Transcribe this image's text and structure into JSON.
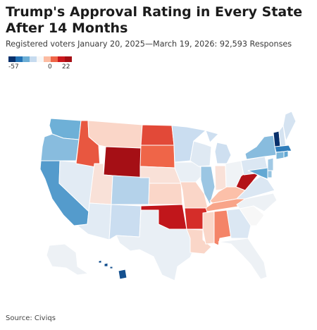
{
  "header": {
    "title": "Trump's Approval Rating in Every State After 14 Months",
    "subtitle": "Registered voters January 20, 2025—March 19, 2026: 92,593 Responses"
  },
  "legend": {
    "min_label": "-57",
    "zero_label": "0",
    "max_label": "22",
    "colors": [
      "#08306b",
      "#2171b5",
      "#6baed6",
      "#c6dbef",
      "#f7f7f7",
      "#fcbba1",
      "#ef6548",
      "#cb181d",
      "#a50f15"
    ]
  },
  "footer": {
    "source": "Source: Civiqs"
  },
  "map": {
    "scale": {
      "min": -57,
      "max": 22
    },
    "states": [
      {
        "id": "WA",
        "value": -28
      },
      {
        "id": "OR",
        "value": -24
      },
      {
        "id": "CA",
        "value": -33
      },
      {
        "id": "NV",
        "value": -6
      },
      {
        "id": "ID",
        "value": 12
      },
      {
        "id": "MT",
        "value": 3
      },
      {
        "id": "WY",
        "value": 22
      },
      {
        "id": "UT",
        "value": 2
      },
      {
        "id": "AZ",
        "value": -6
      },
      {
        "id": "CO",
        "value": -17
      },
      {
        "id": "NM",
        "value": -13
      },
      {
        "id": "ND",
        "value": 13
      },
      {
        "id": "SD",
        "value": 11
      },
      {
        "id": "NE",
        "value": 2
      },
      {
        "id": "KS",
        "value": 3
      },
      {
        "id": "OK",
        "value": 18
      },
      {
        "id": "TX",
        "value": -4
      },
      {
        "id": "MN",
        "value": -13
      },
      {
        "id": "IA",
        "value": -4
      },
      {
        "id": "MO",
        "value": 3
      },
      {
        "id": "AR",
        "value": 15
      },
      {
        "id": "LA",
        "value": 3
      },
      {
        "id": "WI",
        "value": -7
      },
      {
        "id": "IL",
        "value": -21
      },
      {
        "id": "MI",
        "value": -12
      },
      {
        "id": "IN",
        "value": 2
      },
      {
        "id": "OH",
        "value": -2
      },
      {
        "id": "KY",
        "value": 5
      },
      {
        "id": "TN",
        "value": 7
      },
      {
        "id": "MS",
        "value": 3
      },
      {
        "id": "AL",
        "value": 9
      },
      {
        "id": "GA",
        "value": -8
      },
      {
        "id": "FL",
        "value": -3
      },
      {
        "id": "SC",
        "value": 0
      },
      {
        "id": "NC",
        "value": -3
      },
      {
        "id": "VA",
        "value": -8
      },
      {
        "id": "WV",
        "value": 20
      },
      {
        "id": "PA",
        "value": -8
      },
      {
        "id": "NY",
        "value": -24
      },
      {
        "id": "VT",
        "value": -57
      },
      {
        "id": "NH",
        "value": -10
      },
      {
        "id": "ME",
        "value": -10
      },
      {
        "id": "MA",
        "value": -40
      },
      {
        "id": "CT",
        "value": -26
      },
      {
        "id": "RI",
        "value": -30
      },
      {
        "id": "NJ",
        "value": -20
      },
      {
        "id": "DE",
        "value": -22
      },
      {
        "id": "MD",
        "value": -30
      },
      {
        "id": "AK",
        "value": -3
      },
      {
        "id": "HI",
        "value": -50
      }
    ]
  }
}
